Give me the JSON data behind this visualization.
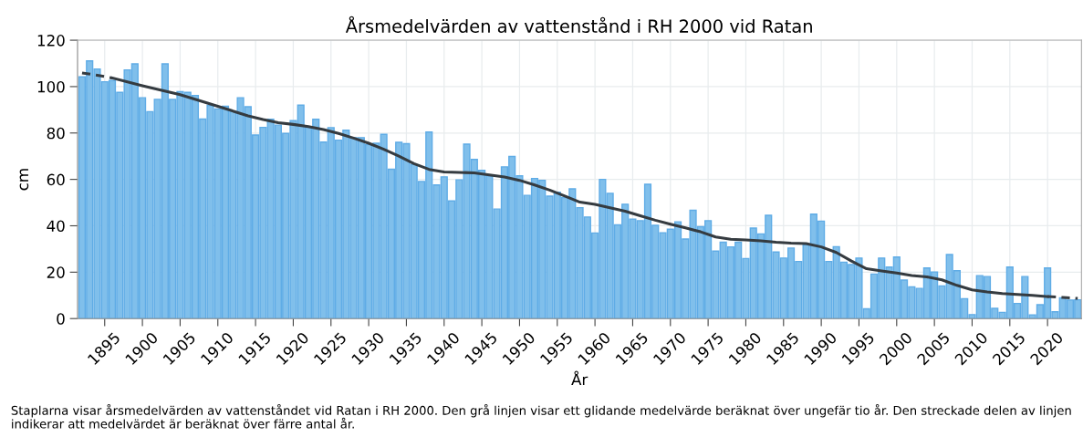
{
  "chart_data": {
    "type": "bar",
    "title": "Årsmedelvärden av vattenstånd i RH 2000 vid Ratan",
    "xlabel": "År",
    "ylabel": "cm",
    "annotations": [
      "Staplarna visar årsmedelvärden av vattenståndet vid Ratan i RH 2000. Den grå linjen visar ett glidande medelvärde beräknat över ungefär tio år. Den streckade delen av linjen indikerar att medelvärdet är beräknat över färre antal år."
    ],
    "x": [
      1892,
      1893,
      1894,
      1895,
      1896,
      1897,
      1898,
      1899,
      1900,
      1901,
      1902,
      1903,
      1904,
      1905,
      1906,
      1907,
      1908,
      1909,
      1910,
      1911,
      1912,
      1913,
      1914,
      1915,
      1916,
      1917,
      1918,
      1919,
      1920,
      1921,
      1922,
      1923,
      1924,
      1925,
      1926,
      1927,
      1928,
      1929,
      1930,
      1931,
      1932,
      1933,
      1934,
      1935,
      1936,
      1937,
      1938,
      1939,
      1940,
      1941,
      1942,
      1943,
      1944,
      1945,
      1946,
      1947,
      1948,
      1949,
      1950,
      1951,
      1952,
      1953,
      1954,
      1955,
      1956,
      1957,
      1958,
      1959,
      1960,
      1961,
      1962,
      1963,
      1964,
      1965,
      1966,
      1967,
      1968,
      1969,
      1970,
      1971,
      1972,
      1973,
      1974,
      1975,
      1976,
      1977,
      1978,
      1979,
      1980,
      1981,
      1982,
      1983,
      1984,
      1985,
      1986,
      1987,
      1988,
      1989,
      1990,
      1991,
      1992,
      1993,
      1994,
      1995,
      1996,
      1997,
      1998,
      1999,
      2000,
      2001,
      2002,
      2003,
      2004,
      2005,
      2006,
      2007,
      2008,
      2009,
      2010,
      2011,
      2012,
      2013,
      2014,
      2015,
      2016,
      2017,
      2018,
      2019,
      2020,
      2021,
      2022,
      2023,
      2024
    ],
    "series": [
      {
        "color": "#80bfeb",
        "values": [
          104.2,
          111.1,
          107.6,
          102.1,
          102.6,
          97.5,
          107.2,
          109.8,
          95.2,
          89.2,
          94.5,
          109.8,
          94.5,
          97.8,
          97.5,
          96.2,
          86.0,
          91.9,
          90.4,
          91.5,
          89.3,
          95.2,
          91.3,
          79.1,
          82.4,
          85.9,
          83.4,
          79.8,
          85.3,
          92.0,
          82.4,
          85.9,
          76.1,
          82.3,
          76.9,
          81.2,
          78.0,
          78.0,
          75.0,
          75.6,
          79.4,
          64.4,
          76.0,
          75.4,
          66.4,
          59.1,
          80.4,
          57.6,
          61.1,
          50.7,
          59.8,
          75.2,
          68.6,
          63.9,
          61.5,
          47.2,
          65.4,
          69.9,
          61.5,
          53.1,
          60.4,
          59.6,
          52.8,
          54.5,
          52.2,
          55.9,
          47.8,
          43.8,
          36.9,
          60.0,
          54.0,
          40.4,
          49.3,
          42.9,
          42.2,
          57.9,
          40.2,
          37.0,
          38.5,
          41.7,
          34.3,
          46.7,
          39.6,
          42.2,
          29.1,
          32.9,
          30.9,
          32.9,
          25.9,
          39.0,
          36.5,
          44.5,
          28.7,
          26.1,
          30.4,
          24.6,
          31.8,
          45.0,
          42.0,
          24.6,
          31.0,
          24.3,
          23.3,
          26.1,
          4.2,
          19.2,
          26.1,
          22.2,
          26.5,
          16.6,
          13.7,
          13.0,
          21.8,
          20.1,
          14.1,
          27.6,
          20.6,
          8.6,
          1.7,
          18.5,
          18.1,
          4.4,
          2.7,
          22.2,
          6.5,
          18.1,
          1.6,
          6.0,
          21.8,
          2.9,
          8.9,
          8.0,
          8.1
        ]
      },
      {
        "type": "line",
        "color": "#353b40",
        "line_style": "dashed",
        "x": [
          1892,
          1894,
          1896
        ],
        "values": [
          105.9,
          104.9,
          103.7
        ]
      },
      {
        "type": "line",
        "color": "#353b40",
        "line_style": "solid",
        "x": [
          1896,
          1900,
          1905,
          1910,
          1914,
          1916,
          1918,
          1920,
          1922,
          1924,
          1926,
          1928,
          1930,
          1932,
          1934,
          1936,
          1938,
          1940,
          1942,
          1944,
          1946,
          1948,
          1950,
          1952,
          1954,
          1956,
          1958,
          1960,
          1962,
          1964,
          1966,
          1968,
          1970,
          1972,
          1974,
          1976,
          1978,
          1980,
          1982,
          1984,
          1986,
          1988,
          1990,
          1992,
          1994,
          1996,
          1998,
          2000,
          2002,
          2004,
          2006,
          2008,
          2010,
          2012,
          2014,
          2016,
          2018,
          2020
        ],
        "values": [
          103.7,
          100.4,
          96.5,
          91.5,
          87.4,
          85.8,
          84.4,
          83.7,
          82.8,
          81.5,
          79.8,
          77.8,
          75.6,
          73.0,
          70.0,
          66.8,
          64.3,
          63.2,
          63.0,
          62.8,
          61.9,
          61.0,
          59.6,
          57.6,
          55.4,
          52.8,
          50.2,
          49.2,
          47.8,
          46.3,
          44.3,
          42.4,
          40.7,
          39.1,
          37.4,
          35.2,
          34.2,
          33.9,
          33.5,
          32.9,
          32.5,
          32.3,
          30.9,
          28.5,
          24.8,
          21.5,
          20.5,
          19.6,
          18.6,
          18.0,
          16.7,
          14.3,
          12.4,
          11.5,
          10.8,
          10.4,
          10.0,
          9.5
        ]
      },
      {
        "type": "line",
        "color": "#353b40",
        "line_style": "dashed",
        "x": [
          2020,
          2022,
          2024
        ],
        "values": [
          9.5,
          9.1,
          8.7
        ]
      }
    ],
    "xlim": [
      1891.4,
      2024.5
    ],
    "xticks": [
      1895,
      1900,
      1905,
      1910,
      1915,
      1920,
      1925,
      1930,
      1935,
      1940,
      1945,
      1950,
      1955,
      1960,
      1965,
      1970,
      1975,
      1980,
      1985,
      1990,
      1995,
      2000,
      2005,
      2010,
      2015,
      2020
    ],
    "ylim": [
      0,
      120
    ],
    "yticks": [
      0,
      20,
      40,
      60,
      80,
      100,
      120
    ],
    "grid": true,
    "legend": false
  }
}
